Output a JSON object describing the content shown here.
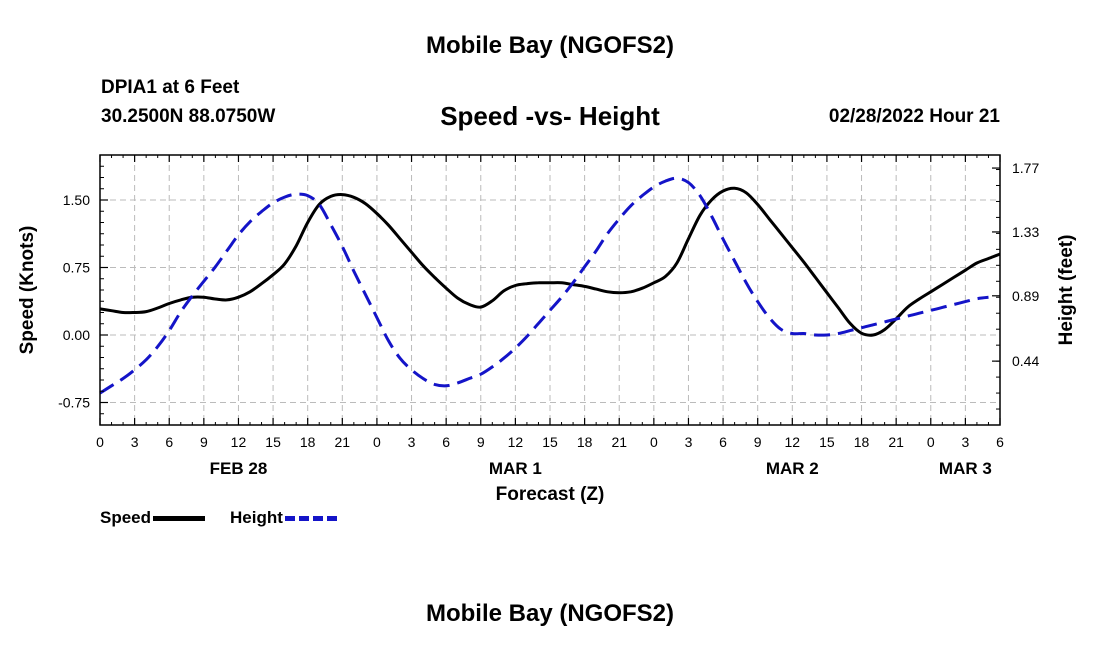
{
  "page": {
    "title_top": "Mobile Bay (NGOFS2)",
    "title_bottom": "Mobile Bay (NGOFS2)",
    "station": "DPIA1 at 6 Feet",
    "coords": "30.2500N  88.0750W",
    "datetime": "02/28/2022 Hour 21"
  },
  "chart_data": {
    "type": "line",
    "title": "Speed -vs- Height",
    "xlabel": "Forecast (Z)",
    "ylabel": "Speed (Knots)",
    "y2label": "Height (feet)",
    "x_ticks": [
      "0",
      "3",
      "6",
      "9",
      "12",
      "15",
      "18",
      "21",
      "0",
      "3",
      "6",
      "9",
      "12",
      "15",
      "18",
      "21",
      "0",
      "3",
      "6",
      "9",
      "12",
      "15",
      "18",
      "21",
      "0",
      "3",
      "6"
    ],
    "x_range_hours": [
      0,
      78
    ],
    "day_labels": [
      {
        "label": "FEB 28",
        "hour": 12
      },
      {
        "label": "MAR 1",
        "hour": 36
      },
      {
        "label": "MAR 2",
        "hour": 60
      },
      {
        "label": "MAR 3",
        "hour": 75
      }
    ],
    "ylim": [
      -1.0,
      2.0
    ],
    "y_ticks": [
      "-0.75",
      "0.00",
      "0.75",
      "1.50"
    ],
    "y2lim": [
      0.0,
      1.86
    ],
    "y2_ticks": [
      "0.44",
      "0.89",
      "1.33",
      "1.77"
    ],
    "grid": true,
    "series": [
      {
        "name": "Speed",
        "color": "#000000",
        "style": "solid",
        "axis": "left",
        "x": [
          0,
          1,
          2,
          3,
          4,
          5,
          6,
          7,
          8,
          9,
          10,
          11,
          12,
          13,
          14,
          15,
          16,
          17,
          18,
          19,
          20,
          21,
          22,
          23,
          24,
          25,
          26,
          27,
          28,
          29,
          30,
          31,
          32,
          33,
          34,
          35,
          36,
          37,
          38,
          39,
          40,
          41,
          42,
          43,
          44,
          45,
          46,
          47,
          48,
          49,
          50,
          51,
          52,
          53,
          54,
          55,
          56,
          57,
          58,
          59,
          60,
          61,
          62,
          63,
          64,
          65,
          66,
          67,
          68,
          69,
          70,
          71,
          72,
          73,
          74,
          75,
          76,
          77,
          78
        ],
        "values": [
          0.29,
          0.27,
          0.25,
          0.25,
          0.26,
          0.3,
          0.35,
          0.39,
          0.42,
          0.42,
          0.4,
          0.39,
          0.42,
          0.48,
          0.57,
          0.67,
          0.79,
          0.99,
          1.25,
          1.45,
          1.54,
          1.56,
          1.53,
          1.46,
          1.35,
          1.22,
          1.07,
          0.92,
          0.77,
          0.64,
          0.52,
          0.41,
          0.34,
          0.31,
          0.38,
          0.49,
          0.55,
          0.57,
          0.58,
          0.58,
          0.58,
          0.56,
          0.54,
          0.51,
          0.48,
          0.47,
          0.48,
          0.52,
          0.58,
          0.65,
          0.8,
          1.07,
          1.33,
          1.5,
          1.6,
          1.63,
          1.58,
          1.45,
          1.29,
          1.13,
          0.97,
          0.81,
          0.64,
          0.47,
          0.3,
          0.13,
          0.02,
          0.0,
          0.06,
          0.18,
          0.31,
          0.4,
          0.48,
          0.56,
          0.64,
          0.72,
          0.8,
          0.85,
          0.9
        ]
      },
      {
        "name": "Height",
        "color": "#1414c8",
        "style": "dashed",
        "axis": "right",
        "x": [
          0,
          1,
          2,
          3,
          4,
          5,
          6,
          7,
          8,
          9,
          10,
          11,
          12,
          13,
          14,
          15,
          16,
          17,
          18,
          19,
          20,
          21,
          22,
          23,
          24,
          25,
          26,
          27,
          28,
          29,
          30,
          31,
          32,
          33,
          34,
          35,
          36,
          37,
          38,
          39,
          40,
          41,
          42,
          43,
          44,
          45,
          46,
          47,
          48,
          49,
          50,
          51,
          52,
          53,
          54,
          55,
          56,
          57,
          58,
          59,
          60,
          61,
          62,
          63,
          64,
          65,
          66,
          67,
          68,
          69,
          70,
          71,
          72,
          73,
          74,
          75,
          76,
          77
        ],
        "values": [
          0.22,
          0.27,
          0.32,
          0.38,
          0.45,
          0.54,
          0.65,
          0.78,
          0.89,
          0.99,
          1.09,
          1.2,
          1.31,
          1.4,
          1.47,
          1.53,
          1.57,
          1.59,
          1.58,
          1.52,
          1.38,
          1.23,
          1.06,
          0.9,
          0.74,
          0.58,
          0.46,
          0.38,
          0.32,
          0.28,
          0.27,
          0.29,
          0.32,
          0.35,
          0.4,
          0.46,
          0.53,
          0.61,
          0.7,
          0.79,
          0.88,
          0.98,
          1.09,
          1.2,
          1.32,
          1.42,
          1.51,
          1.58,
          1.64,
          1.68,
          1.7,
          1.67,
          1.58,
          1.44,
          1.28,
          1.13,
          0.98,
          0.85,
          0.74,
          0.66,
          0.63,
          0.63,
          0.62,
          0.62,
          0.63,
          0.65,
          0.67,
          0.69,
          0.71,
          0.73,
          0.75,
          0.77,
          0.79,
          0.81,
          0.83,
          0.85,
          0.87,
          0.88
        ]
      }
    ],
    "legend_position": "bottom-left"
  }
}
